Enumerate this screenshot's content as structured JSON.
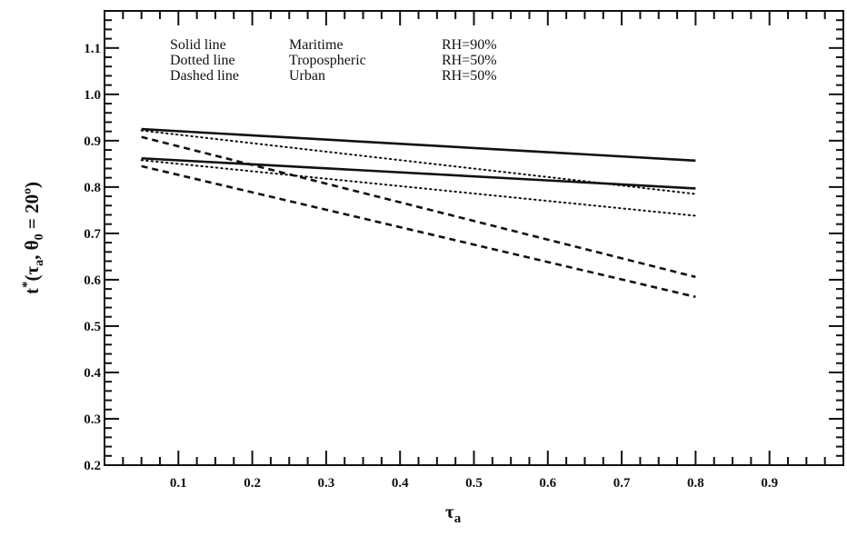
{
  "chart_data": {
    "type": "line",
    "xlabel_main": "τ",
    "xlabel_sub": "a",
    "ylabel": "t*(τa, θ0 = 20º)",
    "ylabel_parts": {
      "t": "t",
      "star": "*",
      "open": "(τ",
      "tau_sub": "a",
      "mid": ", θ",
      "theta_sub": "0",
      "rest": " = 20º)"
    },
    "xlim": [
      0.0,
      1.0
    ],
    "ylim": [
      0.2,
      1.18
    ],
    "xticks": [
      "0.1",
      "0.2",
      "0.3",
      "0.4",
      "0.5",
      "0.6",
      "0.7",
      "0.8",
      "0.9"
    ],
    "yticks": [
      "0.2",
      "0.3",
      "0.4",
      "0.5",
      "0.6",
      "0.7",
      "0.8",
      "0.9",
      "1.0",
      "1.1"
    ],
    "grid": false,
    "legend": {
      "position": "top-left",
      "rows": [
        {
          "style": "Solid line",
          "model": "Maritime",
          "rh": "RH=90%"
        },
        {
          "style": "Dotted line",
          "model": "Tropospheric",
          "rh": "RH=50%"
        },
        {
          "style": "Dashed line",
          "model": "Urban",
          "rh": "RH=50%"
        }
      ]
    },
    "series": [
      {
        "style": "solid",
        "x": [
          0.05,
          0.8
        ],
        "y": [
          0.925,
          0.857
        ]
      },
      {
        "style": "solid",
        "x": [
          0.05,
          0.8
        ],
        "y": [
          0.862,
          0.797
        ]
      },
      {
        "style": "dotted",
        "x": [
          0.05,
          0.8
        ],
        "y": [
          0.922,
          0.785
        ]
      },
      {
        "style": "dotted",
        "x": [
          0.05,
          0.8
        ],
        "y": [
          0.858,
          0.738
        ]
      },
      {
        "style": "dashed",
        "x": [
          0.05,
          0.8
        ],
        "y": [
          0.908,
          0.606
        ]
      },
      {
        "style": "dashed",
        "x": [
          0.05,
          0.8
        ],
        "y": [
          0.845,
          0.563
        ]
      }
    ],
    "colors": {
      "ink": "#111111",
      "background": "#ffffff"
    }
  }
}
